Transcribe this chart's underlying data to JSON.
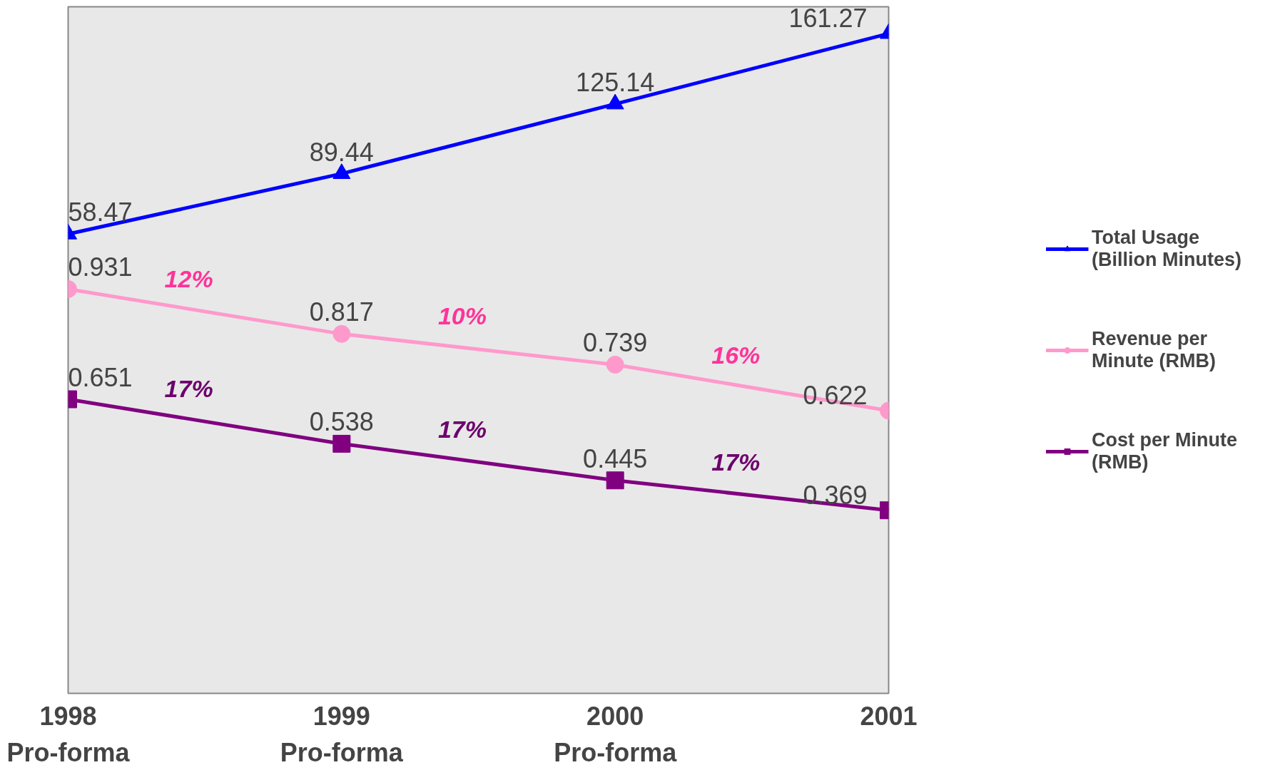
{
  "chart_data": {
    "type": "line",
    "categories": [
      "1998\nPro-forma",
      "1999\nPro-forma",
      "2000\nPro-forma",
      "2001"
    ],
    "series": [
      {
        "name": "Total Usage\n(Billion Minutes)",
        "color": "#0000ff",
        "marker": "triangle",
        "values": [
          58.47,
          89.44,
          125.14,
          161.27
        ]
      },
      {
        "name": "Revenue per\nMinute (RMB)",
        "color": "#ff99cc",
        "marker": "circle",
        "axis": "y2",
        "values": [
          0.931,
          0.817,
          0.739,
          0.622
        ]
      },
      {
        "name": "Cost per Minute\n(RMB)",
        "color": "#800080",
        "marker": "square",
        "axis": "y2",
        "values": [
          0.651,
          0.538,
          0.445,
          0.369
        ]
      }
    ],
    "annotations": [
      "12%",
      "10%",
      "16%",
      "17%",
      "17%",
      "17%"
    ],
    "ylim": [
      -177,
      175
    ],
    "y2lim": [
      -0.096,
      1.648
    ],
    "data_labels": true,
    "legend": "right",
    "tick_labels": "x",
    "grid": false,
    "line_style": "solid"
  }
}
